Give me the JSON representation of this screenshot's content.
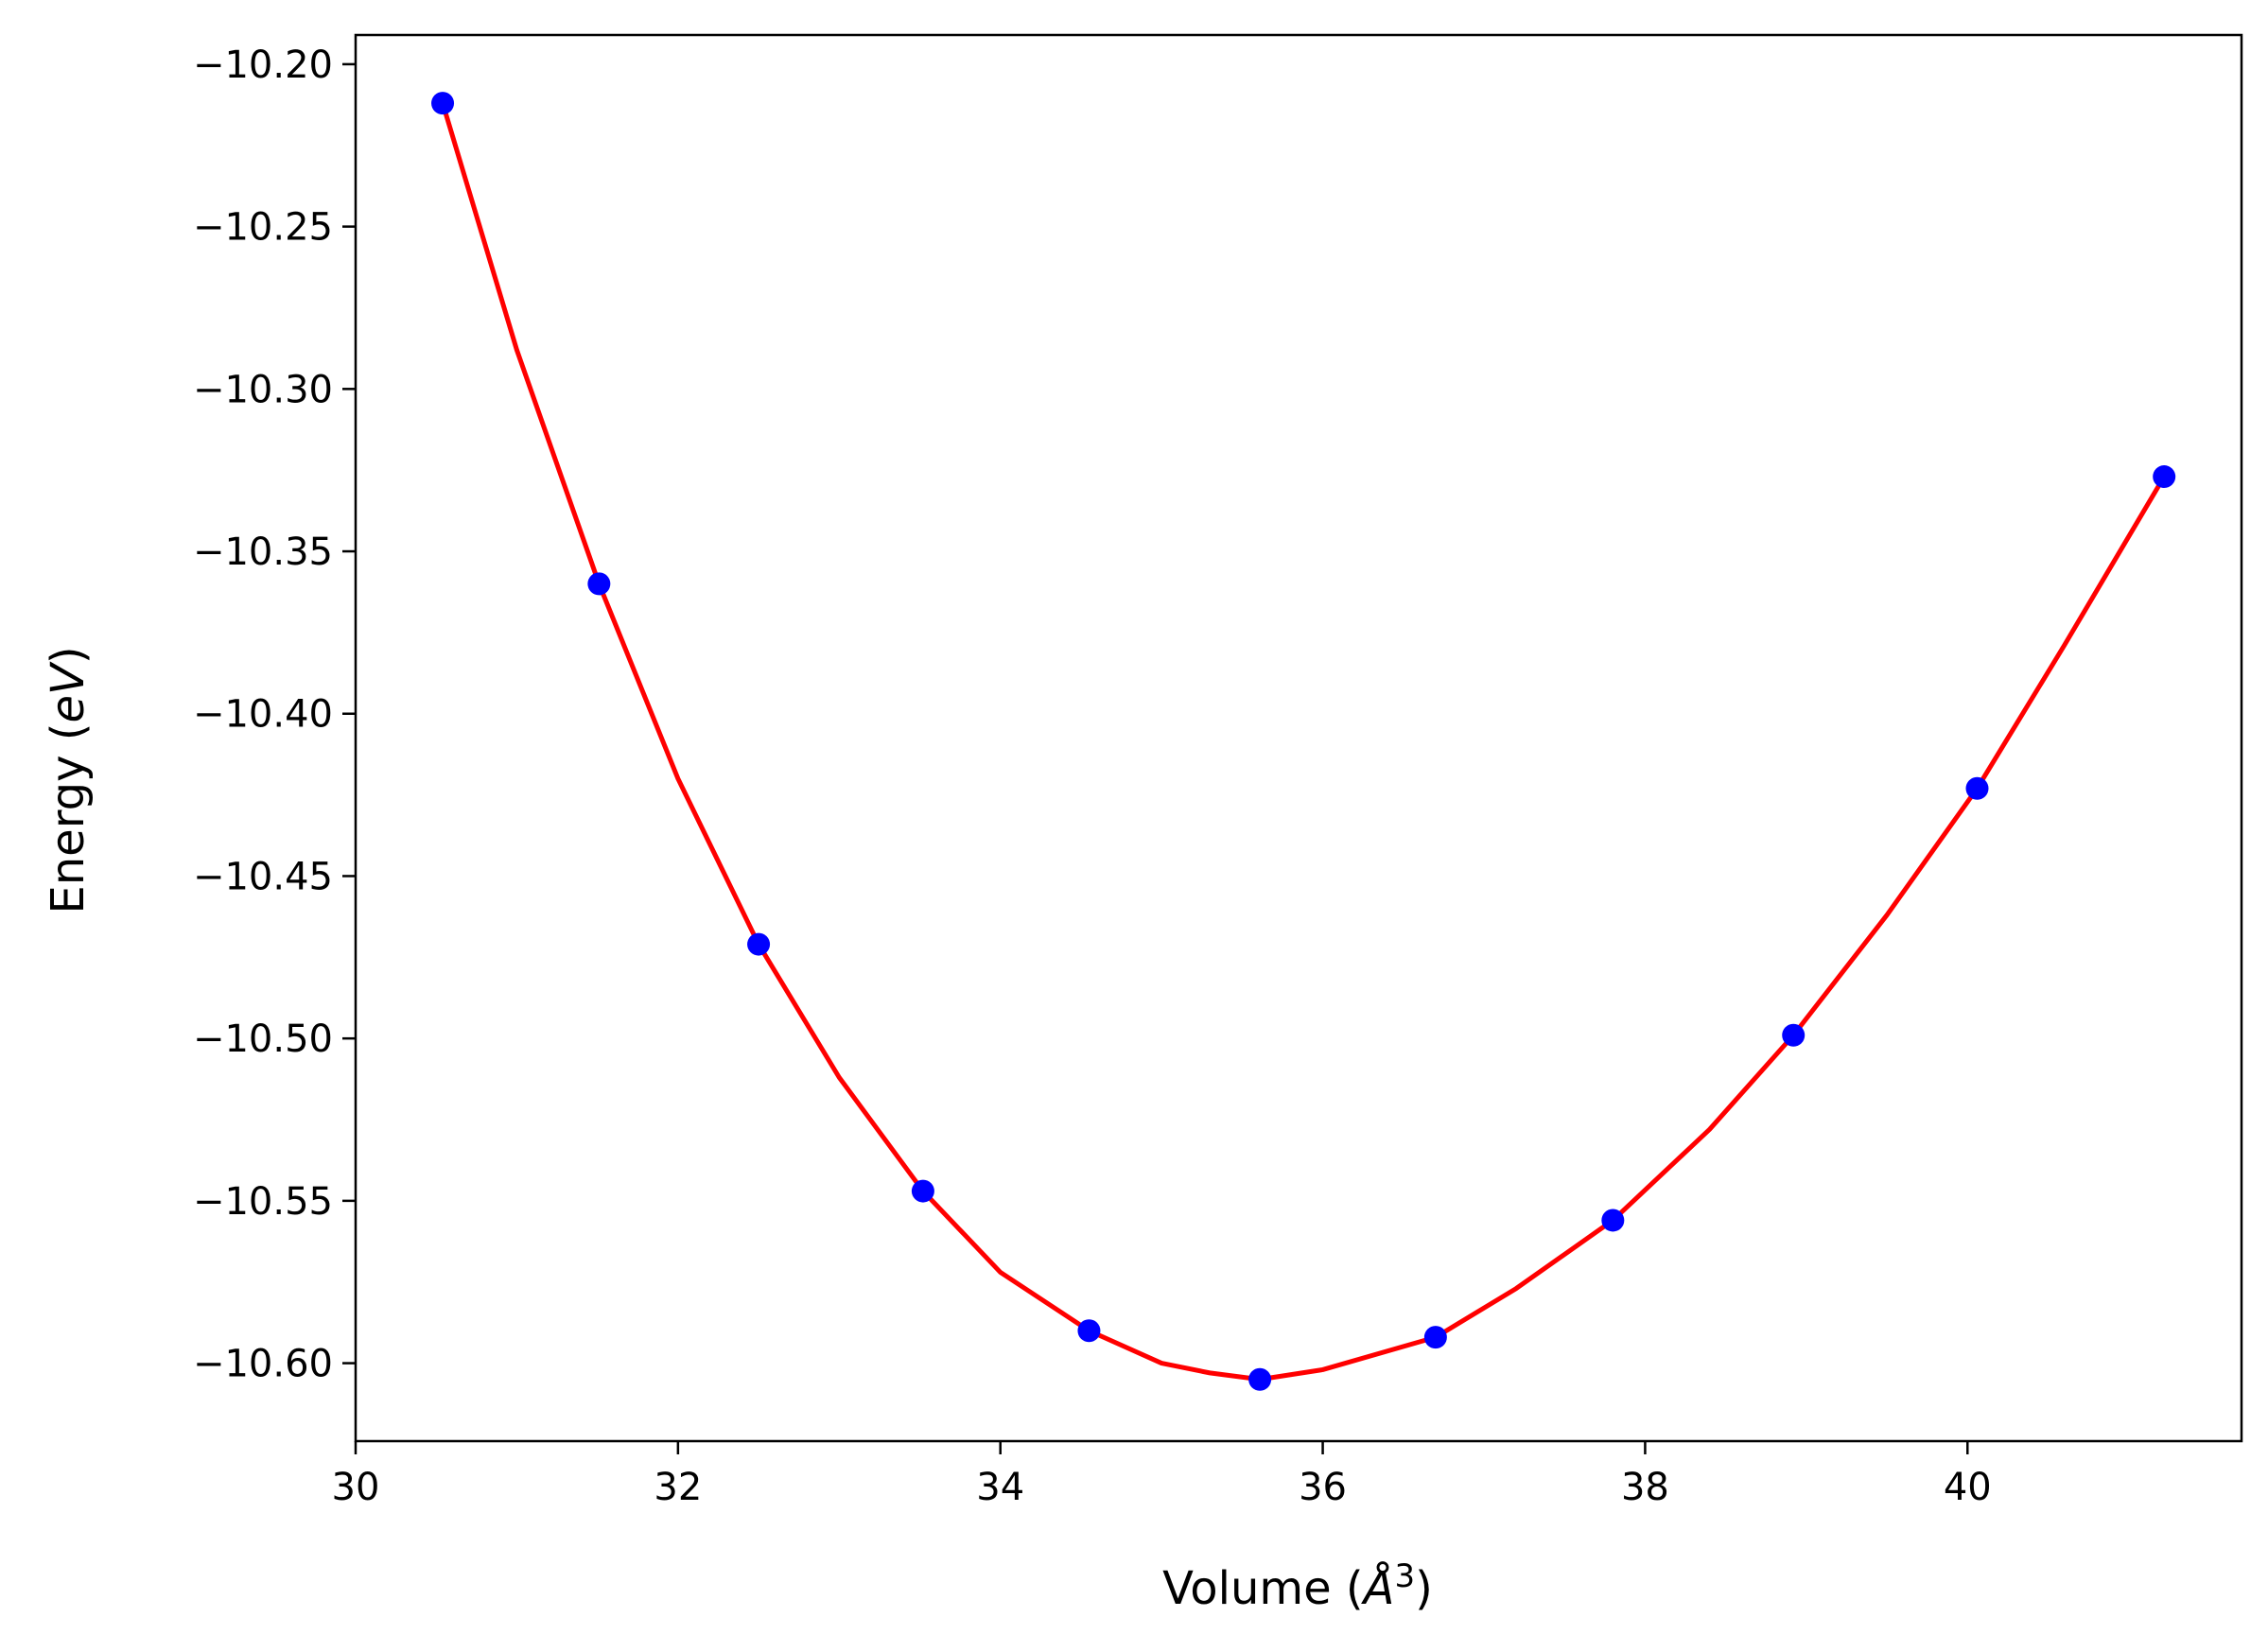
{
  "chart_data": {
    "type": "scatter",
    "xlabel_parts": {
      "prefix": "Volume (",
      "symbol": "Å",
      "sup": "3",
      "suffix": ")"
    },
    "ylabel_parts": {
      "prefix": "Energy (",
      "unit": "eV",
      "suffix": ")"
    },
    "xlim": [
      30,
      41.7
    ],
    "ylim": [
      -10.624,
      -10.191
    ],
    "xticks": [
      30,
      32,
      34,
      36,
      38,
      40
    ],
    "xtick_labels": [
      "30",
      "32",
      "34",
      "36",
      "38",
      "40"
    ],
    "yticks": [
      -10.2,
      -10.25,
      -10.3,
      -10.35,
      -10.4,
      -10.45,
      -10.5,
      -10.55,
      -10.6
    ],
    "ytick_labels": [
      "−10.20",
      "−10.25",
      "−10.30",
      "−10.35",
      "−10.40",
      "−10.45",
      "−10.50",
      "−10.55",
      "−10.60"
    ],
    "grid": false,
    "legend": null,
    "series": [
      {
        "kind": "points",
        "color": "#0000ff",
        "x": [
          30.54,
          31.51,
          32.5,
          33.52,
          34.55,
          35.61,
          36.7,
          37.8,
          38.92,
          40.06,
          41.22
        ],
        "y": [
          -10.212,
          -10.36,
          -10.471,
          -10.547,
          -10.59,
          -10.605,
          -10.592,
          -10.556,
          -10.499,
          -10.423,
          -10.327
        ]
      },
      {
        "kind": "fit-line",
        "color": "#ff0000",
        "x": [
          30.54,
          31.0,
          31.51,
          32.0,
          32.5,
          33.0,
          33.52,
          34.0,
          34.55,
          35.0,
          35.3,
          35.61,
          36.0,
          36.7,
          37.2,
          37.8,
          38.4,
          38.92,
          39.5,
          40.06,
          40.6,
          41.22
        ],
        "y": [
          -10.212,
          -10.288,
          -10.36,
          -10.42,
          -10.471,
          -10.512,
          -10.547,
          -10.572,
          -10.59,
          -10.6,
          -10.603,
          -10.605,
          -10.602,
          -10.592,
          -10.577,
          -10.556,
          -10.528,
          -10.499,
          -10.462,
          -10.423,
          -10.379,
          -10.327
        ]
      }
    ]
  }
}
